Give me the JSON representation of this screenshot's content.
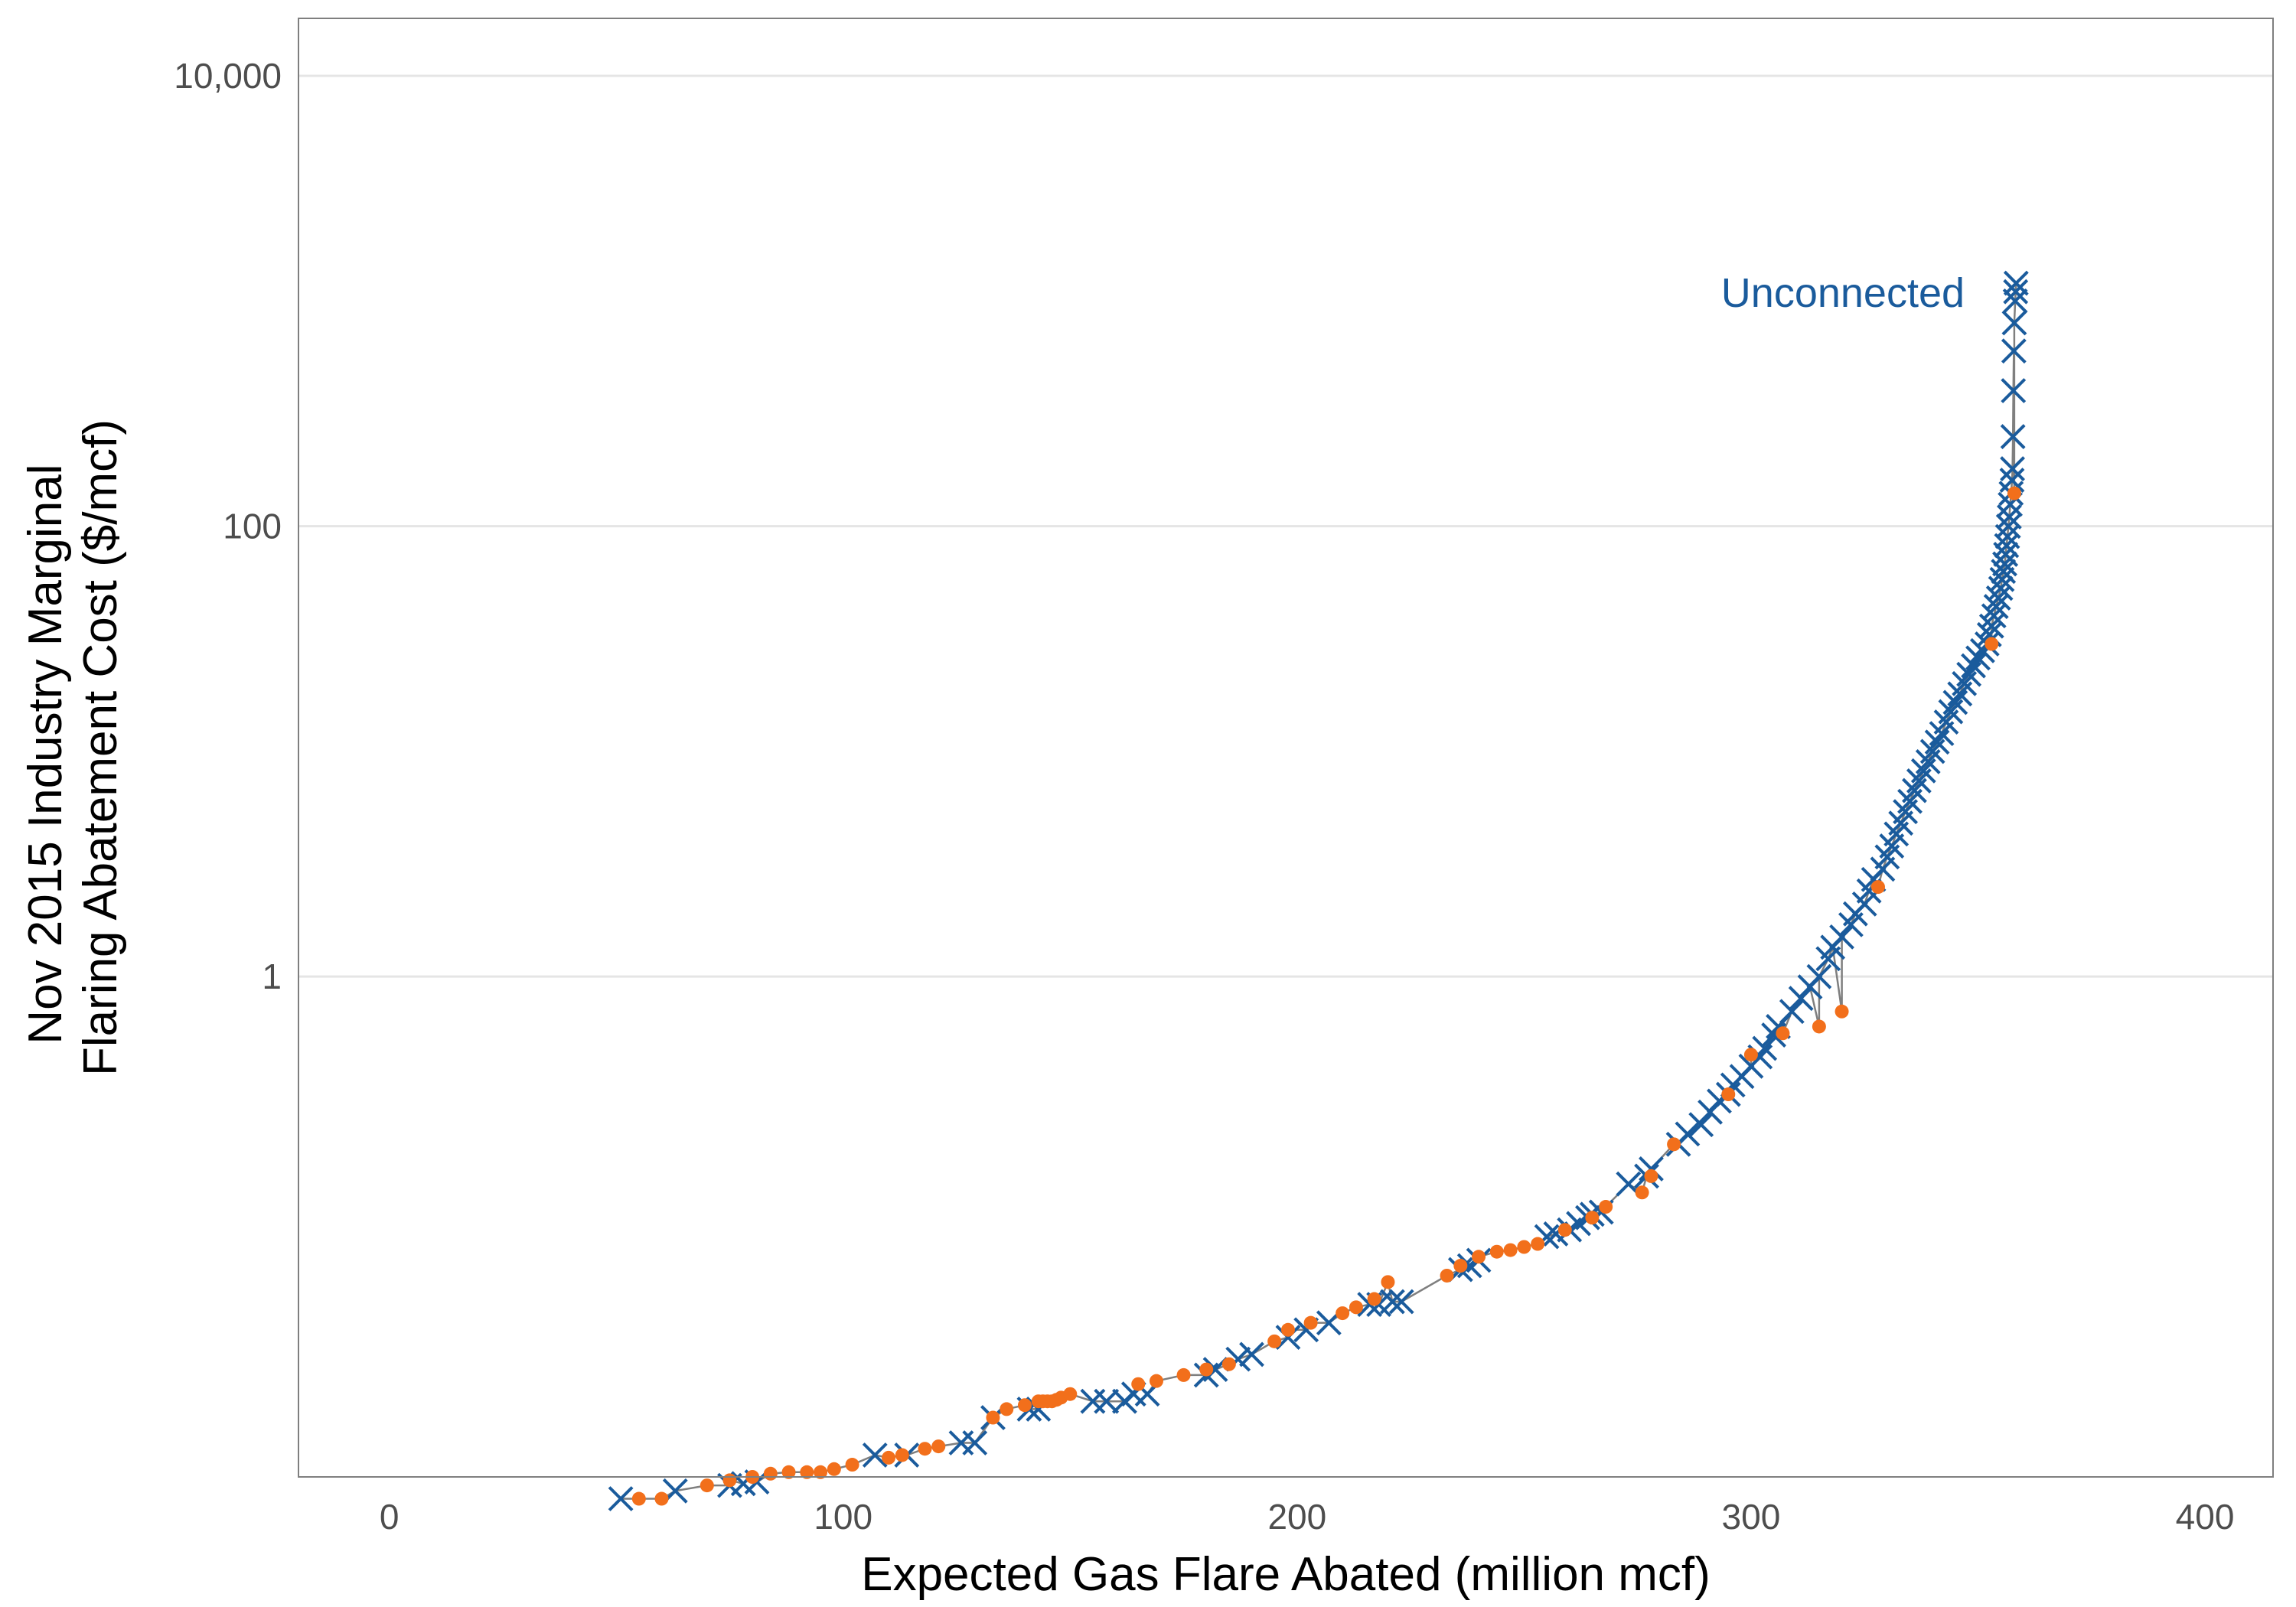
{
  "chart_data": {
    "type": "scatter",
    "title": "",
    "xlabel": "Expected Gas Flare Abated (million mcf)",
    "ylabel_lines": [
      "Nov 2015 Industry Marginal",
      "Flaring Abatement Cost ($/mcf)"
    ],
    "xlim": [
      -20,
      415
    ],
    "ylim": [
      0.006,
      18000
    ],
    "yscale": "log",
    "xticks": [
      0,
      100,
      200,
      300,
      400
    ],
    "xtick_labels": [
      "0",
      "100",
      "200",
      "300",
      "400"
    ],
    "yticks": [
      1,
      100,
      10000
    ],
    "ytick_labels": [
      "1",
      "100",
      "10,000"
    ],
    "grid": "horizontal major lines",
    "legend": "none",
    "annotation": {
      "text": "Unconnected",
      "x": 342,
      "y": 1100
    },
    "colors": {
      "unconnected": "#1a5b9c",
      "connected": "#f26f1b",
      "line": "#7f7f7f",
      "grid": "#e5e5e5",
      "border": "#7f7f7f"
    },
    "series": [
      {
        "name": "Unconnected",
        "marker": "x",
        "x": [
          51,
          63,
          75,
          78,
          81,
          107,
          114,
          126,
          129,
          133,
          141,
          143,
          155,
          158,
          162,
          164,
          167,
          180,
          182,
          187,
          190,
          198,
          202,
          207,
          216,
          218,
          221,
          223,
          236,
          238,
          240,
          255,
          257,
          260,
          262,
          264,
          265,
          267,
          273,
          277,
          278,
          284,
          286,
          289,
          291,
          293,
          295,
          296,
          298,
          300,
          302,
          303,
          305,
          306,
          309,
          311,
          313,
          315,
          317,
          318,
          320,
          322,
          323,
          325,
          326,
          327,
          329,
          330,
          331,
          332,
          333,
          334,
          335,
          336,
          337,
          338,
          339,
          340,
          341,
          342,
          343,
          344,
          345,
          346,
          347,
          348,
          349,
          350,
          351,
          352,
          352.5,
          353,
          353.5,
          354,
          354.5,
          355,
          355.3,
          355.6,
          355.9,
          356.1,
          356.3,
          356.5,
          356.7,
          356.9,
          357.1,
          357.3,
          357.5,
          357.6,
          357.7,
          357.8,
          357.9,
          358,
          358.2,
          358.3,
          358.4
        ],
        "y": [
          0.0048,
          0.0052,
          0.0055,
          0.0056,
          0.0057,
          0.0075,
          0.0075,
          0.0085,
          0.0085,
          0.011,
          0.012,
          0.012,
          0.013,
          0.013,
          0.013,
          0.014,
          0.014,
          0.017,
          0.018,
          0.02,
          0.021,
          0.025,
          0.027,
          0.029,
          0.035,
          0.035,
          0.036,
          0.036,
          0.05,
          0.052,
          0.055,
          0.07,
          0.072,
          0.075,
          0.08,
          0.085,
          0.088,
          0.09,
          0.12,
          0.13,
          0.14,
          0.18,
          0.2,
          0.22,
          0.25,
          0.28,
          0.3,
          0.33,
          0.36,
          0.4,
          0.44,
          0.48,
          0.55,
          0.6,
          0.7,
          0.8,
          0.9,
          1.0,
          1.2,
          1.35,
          1.5,
          1.7,
          1.9,
          2.1,
          2.4,
          2.7,
          3.0,
          3.4,
          3.8,
          4.3,
          4.8,
          5.4,
          6.0,
          6.7,
          7.4,
          8.2,
          9.0,
          10,
          11,
          12,
          13.5,
          15,
          16.5,
          18,
          20,
          22,
          24,
          26,
          28,
          30,
          33,
          36,
          40,
          44,
          48,
          53,
          58,
          63,
          68,
          75,
          82,
          90,
          100,
          110,
          125,
          140,
          160,
          180,
          250,
          400,
          600,
          800,
          1000,
          1100,
          1200
        ]
      },
      {
        "name": "",
        "marker": "dot",
        "x": [
          55,
          60,
          70,
          75,
          80,
          84,
          88,
          92,
          95,
          98,
          102,
          110,
          113,
          118,
          121,
          133,
          136,
          140,
          143,
          144,
          145,
          146,
          147,
          148,
          150,
          165,
          169,
          175,
          180,
          185,
          195,
          198,
          203,
          210,
          213,
          217,
          220,
          233,
          236,
          240,
          244,
          247,
          250,
          253,
          259,
          265,
          268,
          276,
          278,
          283,
          295,
          300,
          307,
          315,
          320,
          328,
          353,
          358
        ],
        "y": [
          0.0048,
          0.0048,
          0.0055,
          0.0058,
          0.006,
          0.0062,
          0.0063,
          0.0063,
          0.0063,
          0.0065,
          0.0068,
          0.0073,
          0.0075,
          0.008,
          0.0082,
          0.011,
          0.012,
          0.0125,
          0.013,
          0.013,
          0.013,
          0.013,
          0.0132,
          0.0135,
          0.014,
          0.0155,
          0.016,
          0.017,
          0.018,
          0.019,
          0.024,
          0.027,
          0.029,
          0.032,
          0.034,
          0.037,
          0.044,
          0.047,
          0.052,
          0.057,
          0.06,
          0.061,
          0.063,
          0.065,
          0.075,
          0.085,
          0.095,
          0.11,
          0.13,
          0.18,
          0.3,
          0.45,
          0.56,
          0.6,
          0.7,
          2.5,
          30,
          140
        ]
      }
    ]
  }
}
